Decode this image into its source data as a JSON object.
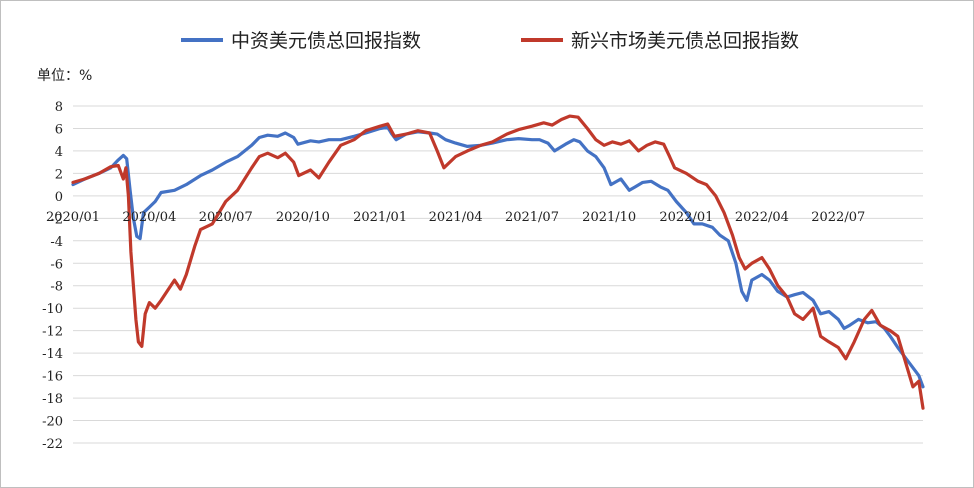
{
  "chart_data": {
    "type": "line",
    "title": "",
    "unit_label": "单位：%",
    "xlabel": "",
    "ylabel": "",
    "ylim": [
      -22,
      8
    ],
    "yticks": [
      8,
      6,
      4,
      2,
      0,
      -2,
      -4,
      -6,
      -8,
      -10,
      -12,
      -14,
      -16,
      -18,
      -20,
      -22
    ],
    "xlim": [
      "2020-01-01",
      "2022-10-10"
    ],
    "xticks": [
      {
        "label": "2020/01",
        "date": "2020-01-01"
      },
      {
        "label": "2020/04",
        "date": "2020-04-01"
      },
      {
        "label": "2020/07",
        "date": "2020-07-01"
      },
      {
        "label": "2020/10",
        "date": "2020-10-01"
      },
      {
        "label": "2021/01",
        "date": "2021-01-01"
      },
      {
        "label": "2021/04",
        "date": "2021-04-01"
      },
      {
        "label": "2021/07",
        "date": "2021-07-01"
      },
      {
        "label": "2021/10",
        "date": "2021-10-01"
      },
      {
        "label": "2022/01",
        "date": "2022-01-01"
      },
      {
        "label": "2022/04",
        "date": "2022-04-01"
      },
      {
        "label": "2022/07",
        "date": "2022-07-01"
      }
    ],
    "grid": true,
    "legend_position": "top",
    "series": [
      {
        "name": "中资美元债总回报指数",
        "color": "#4472C4",
        "points": [
          [
            "2020-01-01",
            1.0
          ],
          [
            "2020-01-15",
            1.5
          ],
          [
            "2020-02-01",
            2.0
          ],
          [
            "2020-02-15",
            2.5
          ],
          [
            "2020-02-24",
            3.2
          ],
          [
            "2020-03-01",
            3.6
          ],
          [
            "2020-03-05",
            3.3
          ],
          [
            "2020-03-09",
            0.5
          ],
          [
            "2020-03-13",
            -2.0
          ],
          [
            "2020-03-17",
            -3.6
          ],
          [
            "2020-03-21",
            -3.8
          ],
          [
            "2020-03-25",
            -1.5
          ],
          [
            "2020-04-01",
            -1.0
          ],
          [
            "2020-04-08",
            -0.5
          ],
          [
            "2020-04-15",
            0.3
          ],
          [
            "2020-05-01",
            0.5
          ],
          [
            "2020-05-15",
            1.0
          ],
          [
            "2020-06-01",
            1.8
          ],
          [
            "2020-06-15",
            2.3
          ],
          [
            "2020-07-01",
            3.0
          ],
          [
            "2020-07-15",
            3.5
          ],
          [
            "2020-08-01",
            4.5
          ],
          [
            "2020-08-10",
            5.2
          ],
          [
            "2020-08-20",
            5.4
          ],
          [
            "2020-09-01",
            5.3
          ],
          [
            "2020-09-10",
            5.6
          ],
          [
            "2020-09-20",
            5.2
          ],
          [
            "2020-09-25",
            4.6
          ],
          [
            "2020-10-10",
            4.9
          ],
          [
            "2020-10-20",
            4.8
          ],
          [
            "2020-11-01",
            5.0
          ],
          [
            "2020-11-15",
            5.0
          ],
          [
            "2020-12-01",
            5.3
          ],
          [
            "2020-12-15",
            5.6
          ],
          [
            "2021-01-01",
            6.0
          ],
          [
            "2021-01-10",
            6.1
          ],
          [
            "2021-01-15",
            5.5
          ],
          [
            "2021-01-20",
            5.0
          ],
          [
            "2021-02-01",
            5.5
          ],
          [
            "2021-02-15",
            5.7
          ],
          [
            "2021-03-01",
            5.6
          ],
          [
            "2021-03-10",
            5.5
          ],
          [
            "2021-03-20",
            5.0
          ],
          [
            "2021-04-01",
            4.7
          ],
          [
            "2021-04-15",
            4.4
          ],
          [
            "2021-05-01",
            4.5
          ],
          [
            "2021-05-15",
            4.7
          ],
          [
            "2021-06-01",
            5.0
          ],
          [
            "2021-06-15",
            5.1
          ],
          [
            "2021-07-01",
            5.0
          ],
          [
            "2021-07-10",
            5.0
          ],
          [
            "2021-07-20",
            4.7
          ],
          [
            "2021-07-28",
            4.0
          ],
          [
            "2021-08-10",
            4.6
          ],
          [
            "2021-08-20",
            5.0
          ],
          [
            "2021-08-27",
            4.8
          ],
          [
            "2021-09-05",
            4.0
          ],
          [
            "2021-09-15",
            3.5
          ],
          [
            "2021-09-25",
            2.5
          ],
          [
            "2021-10-03",
            1.0
          ],
          [
            "2021-10-15",
            1.5
          ],
          [
            "2021-10-25",
            0.5
          ],
          [
            "2021-11-01",
            0.8
          ],
          [
            "2021-11-10",
            1.2
          ],
          [
            "2021-11-20",
            1.3
          ],
          [
            "2021-12-01",
            0.8
          ],
          [
            "2021-12-10",
            0.5
          ],
          [
            "2021-12-20",
            -0.5
          ],
          [
            "2022-01-01",
            -1.5
          ],
          [
            "2022-01-10",
            -2.5
          ],
          [
            "2022-01-20",
            -2.5
          ],
          [
            "2022-02-01",
            -2.8
          ],
          [
            "2022-02-10",
            -3.5
          ],
          [
            "2022-02-20",
            -4.0
          ],
          [
            "2022-03-01",
            -6.0
          ],
          [
            "2022-03-08",
            -8.5
          ],
          [
            "2022-03-14",
            -9.3
          ],
          [
            "2022-03-20",
            -7.5
          ],
          [
            "2022-04-01",
            -7.0
          ],
          [
            "2022-04-10",
            -7.5
          ],
          [
            "2022-04-20",
            -8.5
          ],
          [
            "2022-05-01",
            -9.0
          ],
          [
            "2022-05-10",
            -8.8
          ],
          [
            "2022-05-20",
            -8.6
          ],
          [
            "2022-06-01",
            -9.3
          ],
          [
            "2022-06-10",
            -10.5
          ],
          [
            "2022-06-20",
            -10.3
          ],
          [
            "2022-07-01",
            -11.0
          ],
          [
            "2022-07-08",
            -11.8
          ],
          [
            "2022-07-15",
            -11.5
          ],
          [
            "2022-07-25",
            -11.0
          ],
          [
            "2022-08-05",
            -11.3
          ],
          [
            "2022-08-15",
            -11.2
          ],
          [
            "2022-08-25",
            -11.8
          ],
          [
            "2022-09-01",
            -12.5
          ],
          [
            "2022-09-10",
            -13.5
          ],
          [
            "2022-09-20",
            -14.5
          ],
          [
            "2022-09-28",
            -15.3
          ],
          [
            "2022-10-05",
            -16.0
          ],
          [
            "2022-10-10",
            -17.0
          ]
        ]
      },
      {
        "name": "新兴市场美元债总回报指数",
        "color": "#C0392B",
        "points": [
          [
            "2020-01-01",
            1.2
          ],
          [
            "2020-01-15",
            1.5
          ],
          [
            "2020-02-01",
            2.0
          ],
          [
            "2020-02-15",
            2.6
          ],
          [
            "2020-02-24",
            2.7
          ],
          [
            "2020-03-01",
            1.5
          ],
          [
            "2020-03-04",
            2.5
          ],
          [
            "2020-03-07",
            0.0
          ],
          [
            "2020-03-10",
            -5.0
          ],
          [
            "2020-03-13",
            -8.0
          ],
          [
            "2020-03-16",
            -11.0
          ],
          [
            "2020-03-19",
            -13.0
          ],
          [
            "2020-03-23",
            -13.4
          ],
          [
            "2020-03-27",
            -10.5
          ],
          [
            "2020-04-01",
            -9.5
          ],
          [
            "2020-04-08",
            -10.0
          ],
          [
            "2020-04-15",
            -9.3
          ],
          [
            "2020-04-22",
            -8.5
          ],
          [
            "2020-05-01",
            -7.5
          ],
          [
            "2020-05-08",
            -8.3
          ],
          [
            "2020-05-15",
            -7.0
          ],
          [
            "2020-05-25",
            -4.5
          ],
          [
            "2020-06-01",
            -3.0
          ],
          [
            "2020-06-15",
            -2.5
          ],
          [
            "2020-07-01",
            -0.5
          ],
          [
            "2020-07-15",
            0.5
          ],
          [
            "2020-08-01",
            2.5
          ],
          [
            "2020-08-10",
            3.5
          ],
          [
            "2020-08-20",
            3.8
          ],
          [
            "2020-09-01",
            3.4
          ],
          [
            "2020-09-10",
            3.8
          ],
          [
            "2020-09-20",
            3.0
          ],
          [
            "2020-09-26",
            1.8
          ],
          [
            "2020-10-10",
            2.3
          ],
          [
            "2020-10-20",
            1.6
          ],
          [
            "2020-11-01",
            3.0
          ],
          [
            "2020-11-15",
            4.5
          ],
          [
            "2020-12-01",
            5.0
          ],
          [
            "2020-12-15",
            5.8
          ],
          [
            "2021-01-01",
            6.2
          ],
          [
            "2021-01-10",
            6.4
          ],
          [
            "2021-01-18",
            5.3
          ],
          [
            "2021-02-01",
            5.5
          ],
          [
            "2021-02-15",
            5.8
          ],
          [
            "2021-03-01",
            5.6
          ],
          [
            "2021-03-10",
            4.0
          ],
          [
            "2021-03-18",
            2.5
          ],
          [
            "2021-04-01",
            3.5
          ],
          [
            "2021-04-15",
            4.0
          ],
          [
            "2021-05-01",
            4.5
          ],
          [
            "2021-05-15",
            4.8
          ],
          [
            "2021-06-01",
            5.5
          ],
          [
            "2021-06-15",
            5.9
          ],
          [
            "2021-07-01",
            6.2
          ],
          [
            "2021-07-15",
            6.5
          ],
          [
            "2021-07-25",
            6.3
          ],
          [
            "2021-08-05",
            6.8
          ],
          [
            "2021-08-15",
            7.1
          ],
          [
            "2021-08-25",
            7.0
          ],
          [
            "2021-09-05",
            6.0
          ],
          [
            "2021-09-15",
            5.0
          ],
          [
            "2021-09-25",
            4.5
          ],
          [
            "2021-10-05",
            4.8
          ],
          [
            "2021-10-15",
            4.6
          ],
          [
            "2021-10-25",
            4.9
          ],
          [
            "2021-11-05",
            4.0
          ],
          [
            "2021-11-15",
            4.5
          ],
          [
            "2021-11-25",
            4.8
          ],
          [
            "2021-12-05",
            4.6
          ],
          [
            "2021-12-12",
            3.5
          ],
          [
            "2021-12-18",
            2.5
          ],
          [
            "2022-01-01",
            2.0
          ],
          [
            "2022-01-15",
            1.3
          ],
          [
            "2022-01-25",
            1.0
          ],
          [
            "2022-02-05",
            0.0
          ],
          [
            "2022-02-15",
            -1.5
          ],
          [
            "2022-02-25",
            -3.5
          ],
          [
            "2022-03-05",
            -5.5
          ],
          [
            "2022-03-12",
            -6.5
          ],
          [
            "2022-03-20",
            -6.0
          ],
          [
            "2022-04-01",
            -5.5
          ],
          [
            "2022-04-10",
            -6.5
          ],
          [
            "2022-04-20",
            -8.0
          ],
          [
            "2022-05-01",
            -9.0
          ],
          [
            "2022-05-10",
            -10.5
          ],
          [
            "2022-05-20",
            -11.0
          ],
          [
            "2022-06-01",
            -10.0
          ],
          [
            "2022-06-10",
            -12.5
          ],
          [
            "2022-06-20",
            -13.0
          ],
          [
            "2022-07-01",
            -13.5
          ],
          [
            "2022-07-10",
            -14.5
          ],
          [
            "2022-07-20",
            -13.0
          ],
          [
            "2022-08-01",
            -11.0
          ],
          [
            "2022-08-10",
            -10.2
          ],
          [
            "2022-08-20",
            -11.5
          ],
          [
            "2022-09-01",
            -12.0
          ],
          [
            "2022-09-10",
            -12.5
          ],
          [
            "2022-09-20",
            -15.0
          ],
          [
            "2022-09-28",
            -17.0
          ],
          [
            "2022-10-05",
            -16.5
          ],
          [
            "2022-10-10",
            -18.9
          ]
        ]
      }
    ]
  }
}
